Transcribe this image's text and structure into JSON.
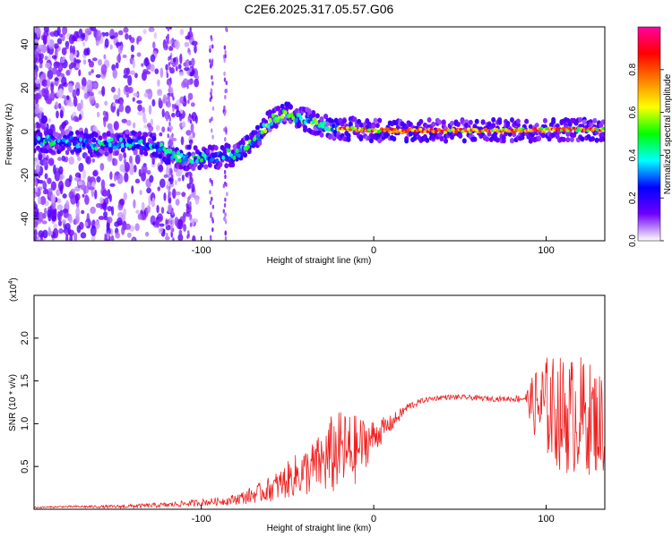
{
  "page_title": "C2E6.2025.317.05.57.G06",
  "chart_data": [
    {
      "type": "heatmap",
      "title": "C2E6.2025.317.05.57.G06",
      "xlabel": "Height of straight line (km)",
      "ylabel": "Frequency (Hz)",
      "xlim": [
        -197,
        134
      ],
      "ylim": [
        -50,
        48
      ],
      "x_ticks": [
        -100,
        0,
        100
      ],
      "y_ticks": [
        40,
        20,
        0,
        -20,
        -40
      ],
      "grid": false,
      "ridge": [
        {
          "x": -185,
          "y": -4
        },
        {
          "x": -160,
          "y": -6
        },
        {
          "x": -145,
          "y": -5
        },
        {
          "x": -128,
          "y": -6
        },
        {
          "x": -112,
          "y": -12
        },
        {
          "x": -95,
          "y": -12
        },
        {
          "x": -80,
          "y": -10
        },
        {
          "x": -70,
          "y": -5
        },
        {
          "x": -60,
          "y": 5
        },
        {
          "x": -50,
          "y": 8
        },
        {
          "x": -38,
          "y": 5
        },
        {
          "x": -25,
          "y": 2
        },
        {
          "x": -10,
          "y": 1
        },
        {
          "x": 10,
          "y": 0.5
        },
        {
          "x": 40,
          "y": 0.5
        },
        {
          "x": 80,
          "y": 0.5
        },
        {
          "x": 110,
          "y": 1
        },
        {
          "x": 134,
          "y": 1
        }
      ],
      "colorbar": {
        "label": "Normalized spectral amplitude",
        "range": [
          0,
          1
        ],
        "ticks": [
          {
            "value": 0.0,
            "label": "0.0"
          },
          {
            "value": 0.2,
            "label": "0.2"
          },
          {
            "value": 0.4,
            "label": "0.4"
          },
          {
            "value": 0.6,
            "label": "0.6"
          },
          {
            "value": 0.8,
            "label": "0.8"
          }
        ],
        "stops": [
          "#ffffff",
          "#6f00ff",
          "#0000ff",
          "#00ffff",
          "#00ff00",
          "#ffff00",
          "#ff8000",
          "#ff0000",
          "#ff00a0"
        ]
      }
    },
    {
      "type": "line",
      "xlabel": "Height of straight line (km)",
      "ylabel": "SNR (10 * v/v)",
      "exponent_label": "(x10",
      "exponent": "4",
      "exponent_close": ")",
      "xlim": [
        -197,
        134
      ],
      "ylim": [
        0,
        2.5
      ],
      "x_ticks": [
        -100,
        0,
        100
      ],
      "y_ticks": [
        {
          "value": 0.5,
          "label": "0.5"
        },
        {
          "value": 1.0,
          "label": "1.0"
        },
        {
          "value": 1.5,
          "label": "1.5"
        },
        {
          "value": 2.0,
          "label": "2.0"
        }
      ],
      "color": "#ee2222",
      "series": [
        {
          "name": "SNR",
          "x": [
            -197,
            -180,
            -150,
            -120,
            -100,
            -85,
            -75,
            -65,
            -55,
            -45,
            -38,
            -30,
            -25,
            -20,
            -15,
            -10,
            0,
            10,
            20,
            30,
            40,
            50,
            60,
            70,
            80,
            88,
            95,
            100,
            110,
            120,
            134
          ],
          "y": [
            0.02,
            0.03,
            0.03,
            0.05,
            0.08,
            0.1,
            0.14,
            0.2,
            0.28,
            0.4,
            0.45,
            0.55,
            0.6,
            0.7,
            0.65,
            0.7,
            0.85,
            1.0,
            1.2,
            1.28,
            1.31,
            1.31,
            1.3,
            1.29,
            1.29,
            1.3,
            1.2,
            1.2,
            1.1,
            1.1,
            1.0
          ],
          "amp": [
            0.01,
            0.01,
            0.02,
            0.03,
            0.04,
            0.05,
            0.08,
            0.12,
            0.18,
            0.25,
            0.3,
            0.35,
            0.5,
            0.45,
            0.5,
            0.4,
            0.2,
            0.1,
            0.05,
            0.03,
            0.03,
            0.03,
            0.03,
            0.03,
            0.03,
            0.06,
            0.5,
            0.6,
            0.7,
            0.7,
            0.6
          ]
        }
      ]
    }
  ]
}
